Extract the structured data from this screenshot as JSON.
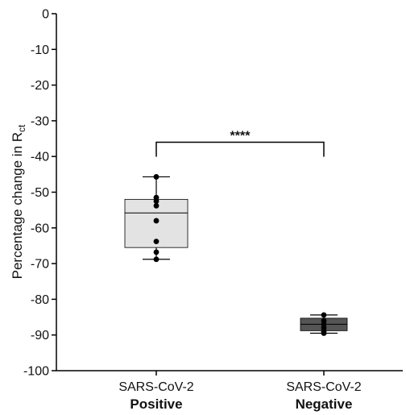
{
  "chart_data": {
    "type": "box",
    "ylabel_main": "Percentage change in R",
    "ylabel_sub": "ct",
    "ylim": [
      -100,
      0
    ],
    "yticks": [
      0,
      -10,
      -20,
      -30,
      -40,
      -50,
      -60,
      -70,
      -80,
      -90,
      -100
    ],
    "yticks_text": [
      "0",
      "-10",
      "-20",
      "-30",
      "-40",
      "-50",
      "-60",
      "-70",
      "-80",
      "-90",
      "-100"
    ],
    "grid": false,
    "categories": [
      {
        "line1": "SARS-CoV-2",
        "line2": "Positive",
        "box_color": "#e3e3e3",
        "whisker_low": -68.8,
        "q1": -65.5,
        "median": -55.8,
        "q3": -52.0,
        "whisker_high": -45.7,
        "points": [
          -45.7,
          -51.5,
          -52.5,
          -53.8,
          -58.0,
          -63.8,
          -66.8,
          -68.8
        ]
      },
      {
        "line1": "SARS-CoV-2",
        "line2": "Negative",
        "box_color": "#555555",
        "whisker_low": -89.5,
        "q1": -88.8,
        "median": -87.0,
        "q3": -85.3,
        "whisker_high": -84.4,
        "points": [
          -84.4,
          -86.0,
          -87.0,
          -88.0,
          -89.0,
          -89.5
        ]
      }
    ],
    "significance": {
      "label": "****",
      "y": -36
    }
  }
}
